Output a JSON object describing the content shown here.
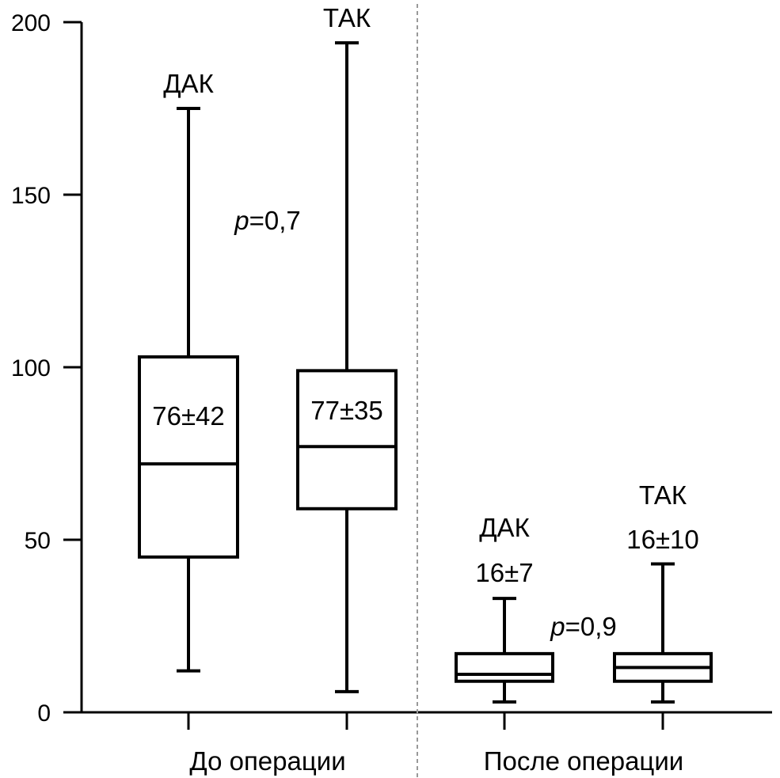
{
  "chart_data": {
    "type": "boxplot",
    "y_ticks": [
      "0",
      "50",
      "100",
      "150",
      "200"
    ],
    "y_tick_values": [
      0,
      50,
      100,
      150,
      200
    ],
    "ylim": [
      0,
      200
    ],
    "groups": [
      {
        "label": "До операции",
        "boxes": [
          {
            "name": "ДАК",
            "stat": "76±42",
            "whisker_low": 12,
            "q1": 45,
            "median": 72,
            "q3": 103,
            "whisker_high": 175
          },
          {
            "name": "ТАК",
            "stat": "77±35",
            "whisker_low": 6,
            "q1": 59,
            "median": 77,
            "q3": 99,
            "whisker_high": 194
          }
        ],
        "p_value": {
          "symbol": "p",
          "value": "=0,7"
        }
      },
      {
        "label": "После операции",
        "boxes": [
          {
            "name": "ДАК",
            "stat": "16±7",
            "whisker_low": 3,
            "q1": 9,
            "median": 11,
            "q3": 17,
            "whisker_high": 33
          },
          {
            "name": "ТАК",
            "stat": "16±10",
            "whisker_low": 3,
            "q1": 9,
            "median": 13,
            "q3": 17,
            "whisker_high": 43
          }
        ],
        "p_value": {
          "symbol": "p",
          "value": "=0,9"
        }
      }
    ],
    "separator": "dashed vertical line between groups",
    "grid": false
  }
}
